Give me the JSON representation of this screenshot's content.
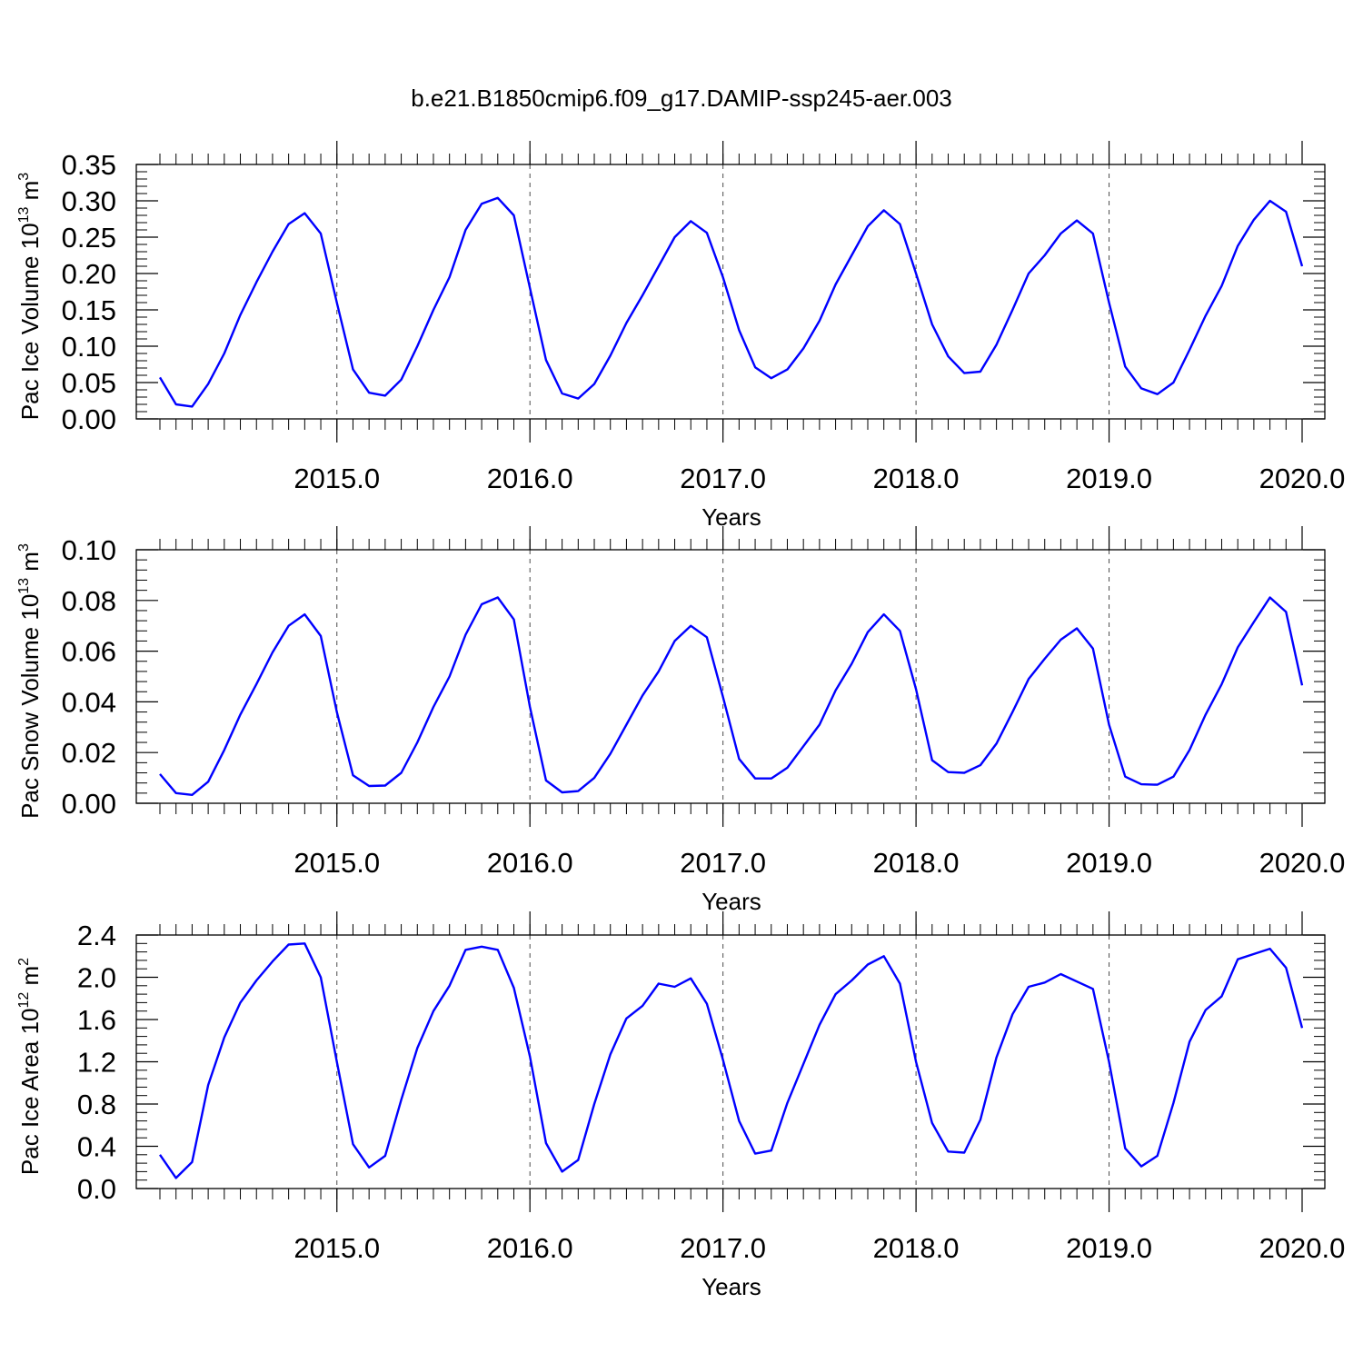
{
  "title": "b.e21.B1850cmip6.f09_g17.DAMIP-ssp245-aer.003",
  "colors": {
    "line": "#0000ff",
    "axis": "#000000",
    "gridline": "#000000"
  },
  "chart_data": [
    {
      "type": "line",
      "ylabel": "Pac Ice Volume 10",
      "ylabel_exp": "13",
      "ylabel_unit": " m",
      "ylabel_unit_exp": "3",
      "xlabel": "Years",
      "xlim": [
        2014.0833,
        2020.0
      ],
      "ylim": [
        0,
        0.35
      ],
      "x_ticks": [
        2015.0,
        2016.0,
        2017.0,
        2018.0,
        2019.0,
        2020.0
      ],
      "x_tick_labels": [
        "2015.0",
        "2016.0",
        "2017.0",
        "2018.0",
        "2019.0",
        "2020.0"
      ],
      "y_ticks": [
        0,
        0.05,
        0.1,
        0.15,
        0.2,
        0.25,
        0.3,
        0.35
      ],
      "y_tick_labels": [
        "0.00",
        "0.05",
        "0.10",
        "0.15",
        "0.20",
        "0.25",
        "0.30",
        "0.35"
      ],
      "grid": "vertical dashed at years",
      "series": [
        {
          "values": [
            0.057,
            0.02,
            0.017,
            0.048,
            0.09,
            0.143,
            0.188,
            0.23,
            0.268,
            0.283,
            0.255,
            0.16,
            0.068,
            0.036,
            0.032,
            0.054,
            0.1,
            0.15,
            0.195,
            0.26,
            0.296,
            0.304,
            0.28,
            0.18,
            0.081,
            0.035,
            0.028,
            0.048,
            0.087,
            0.132,
            0.17,
            0.21,
            0.25,
            0.272,
            0.256,
            0.195,
            0.122,
            0.071,
            0.056,
            0.068,
            0.097,
            0.135,
            0.185,
            0.225,
            0.265,
            0.287,
            0.268,
            0.2,
            0.13,
            0.086,
            0.063,
            0.065,
            0.102,
            0.15,
            0.2,
            0.225,
            0.255,
            0.273,
            0.255,
            0.16,
            0.072,
            0.042,
            0.034,
            0.05,
            0.095,
            0.142,
            0.183,
            0.238,
            0.274,
            0.3,
            0.285,
            0.21
          ]
        }
      ]
    },
    {
      "type": "line",
      "ylabel": "Pac Snow Volume 10",
      "ylabel_exp": "13",
      "ylabel_unit": " m",
      "ylabel_unit_exp": "3",
      "xlabel": "Years",
      "xlim": [
        2014.0833,
        2020.0
      ],
      "ylim": [
        0,
        0.1
      ],
      "x_ticks": [
        2015.0,
        2016.0,
        2017.0,
        2018.0,
        2019.0,
        2020.0
      ],
      "x_tick_labels": [
        "2015.0",
        "2016.0",
        "2017.0",
        "2018.0",
        "2019.0",
        "2020.0"
      ],
      "y_ticks": [
        0,
        0.02,
        0.04,
        0.06,
        0.08,
        0.1
      ],
      "y_tick_labels": [
        "0.00",
        "0.02",
        "0.04",
        "0.06",
        "0.08",
        "0.10"
      ],
      "grid": "vertical dashed at years",
      "series": [
        {
          "values": [
            0.0115,
            0.004,
            0.0033,
            0.0085,
            0.021,
            0.035,
            0.047,
            0.0595,
            0.07,
            0.0745,
            0.066,
            0.036,
            0.011,
            0.0068,
            0.007,
            0.012,
            0.024,
            0.038,
            0.05,
            0.0665,
            0.0785,
            0.0812,
            0.0725,
            0.038,
            0.009,
            0.0043,
            0.0048,
            0.01,
            0.0195,
            0.031,
            0.0425,
            0.052,
            0.064,
            0.07,
            0.0655,
            0.042,
            0.0175,
            0.0098,
            0.0098,
            0.014,
            0.0225,
            0.031,
            0.0445,
            0.055,
            0.0675,
            0.0745,
            0.068,
            0.045,
            0.017,
            0.0123,
            0.012,
            0.015,
            0.0235,
            0.036,
            0.049,
            0.057,
            0.0645,
            0.069,
            0.061,
            0.031,
            0.0105,
            0.0075,
            0.0073,
            0.0105,
            0.021,
            0.035,
            0.047,
            0.0615,
            0.0715,
            0.0812,
            0.0755,
            0.0465
          ]
        }
      ]
    },
    {
      "type": "line",
      "ylabel": "Pac Ice Area 10",
      "ylabel_exp": "12",
      "ylabel_unit": " m",
      "ylabel_unit_exp": "2",
      "xlabel": "Years",
      "xlim": [
        2014.0833,
        2020.0
      ],
      "ylim": [
        0,
        2.4
      ],
      "x_ticks": [
        2015.0,
        2016.0,
        2017.0,
        2018.0,
        2019.0,
        2020.0
      ],
      "x_tick_labels": [
        "2015.0",
        "2016.0",
        "2017.0",
        "2018.0",
        "2019.0",
        "2020.0"
      ],
      "y_ticks": [
        0,
        0.4,
        0.8,
        1.2,
        1.6,
        2.0,
        2.4
      ],
      "y_tick_labels": [
        "0.0",
        "0.4",
        "0.8",
        "1.2",
        "1.6",
        "2.0",
        "2.4"
      ],
      "grid": "vertical dashed at years",
      "series": [
        {
          "values": [
            0.32,
            0.1,
            0.25,
            0.98,
            1.43,
            1.76,
            1.97,
            2.15,
            2.31,
            2.32,
            2.0,
            1.2,
            0.42,
            0.2,
            0.31,
            0.84,
            1.33,
            1.68,
            1.92,
            2.26,
            2.29,
            2.26,
            1.9,
            1.25,
            0.43,
            0.16,
            0.27,
            0.8,
            1.27,
            1.61,
            1.73,
            1.94,
            1.91,
            1.99,
            1.75,
            1.22,
            0.64,
            0.33,
            0.36,
            0.81,
            1.18,
            1.55,
            1.84,
            1.97,
            2.12,
            2.2,
            1.94,
            1.2,
            0.62,
            0.35,
            0.34,
            0.65,
            1.24,
            1.65,
            1.91,
            1.95,
            2.03,
            1.96,
            1.89,
            1.2,
            0.38,
            0.21,
            0.31,
            0.81,
            1.39,
            1.69,
            1.82,
            2.17,
            2.22,
            2.27,
            2.09,
            1.52
          ]
        }
      ]
    }
  ]
}
